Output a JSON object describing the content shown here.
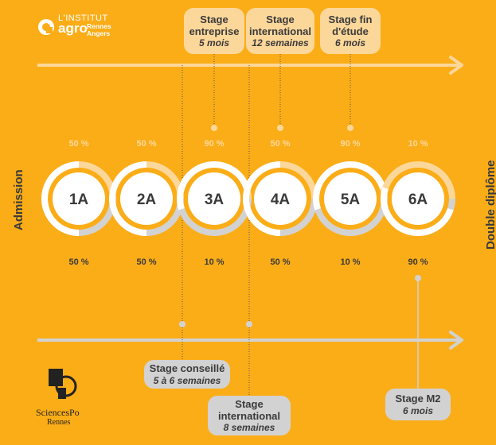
{
  "colors": {
    "background": "#fbad18",
    "light_orange": "#fcd79a",
    "light_gray": "#d2d2d2",
    "white": "#ffffff",
    "text": "#3a3a3a"
  },
  "logo_top": {
    "line1": "L'INSTITUT",
    "word": "agro",
    "city1": "Rennes",
    "city2": "Angers"
  },
  "logo_bottom": {
    "name": "SciencesPo",
    "city": "Rennes"
  },
  "side_labels": {
    "left": "Admission",
    "right": "Double diplôme"
  },
  "years": [
    {
      "label": "1A",
      "top_percent": "50 %",
      "bottom_percent": "50 %",
      "top_share": 0.5,
      "bottom_share": 0.5
    },
    {
      "label": "2A",
      "top_percent": "50 %",
      "bottom_percent": "50 %",
      "top_share": 0.5,
      "bottom_share": 0.5
    },
    {
      "label": "3A",
      "top_percent": "90 %",
      "bottom_percent": "10 %",
      "top_share": 0.9,
      "bottom_share": 0.1
    },
    {
      "label": "4A",
      "top_percent": "50 %",
      "bottom_percent": "50 %",
      "top_share": 0.5,
      "bottom_share": 0.5
    },
    {
      "label": "5A",
      "top_percent": "90 %",
      "bottom_percent": "10 %",
      "top_share": 0.9,
      "bottom_share": 0.1
    },
    {
      "label": "6A",
      "top_percent": "10 %",
      "bottom_percent": "90 %",
      "top_share": 0.1,
      "bottom_share": 0.9
    }
  ],
  "top_internships": [
    {
      "title_line1": "Stage",
      "title_line2": "entreprise",
      "duration": "5 mois"
    },
    {
      "title_line1": "Stage",
      "title_line2": "international",
      "duration": "12 semaines"
    },
    {
      "title_line1": "Stage fin",
      "title_line2": "d'étude",
      "duration": "6 mois"
    }
  ],
  "bottom_internships": [
    {
      "title_line1": "Stage conseillé",
      "title_line2": "",
      "duration": "5 à 6 semaines"
    },
    {
      "title_line1": "Stage",
      "title_line2": "international",
      "duration": "8 semaines"
    },
    {
      "title_line1": "Stage M2",
      "title_line2": "",
      "duration": "6 mois"
    }
  ]
}
